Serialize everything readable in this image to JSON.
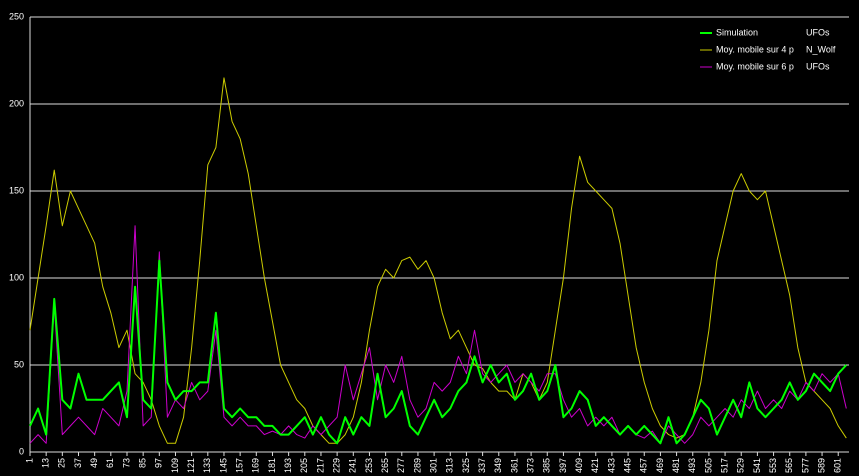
{
  "chart_data": {
    "type": "line",
    "x": [
      1,
      7,
      13,
      19,
      25,
      31,
      37,
      43,
      49,
      55,
      61,
      67,
      73,
      79,
      85,
      91,
      97,
      103,
      109,
      115,
      121,
      127,
      133,
      139,
      145,
      151,
      157,
      163,
      169,
      175,
      181,
      187,
      193,
      199,
      205,
      211,
      217,
      223,
      229,
      235,
      241,
      247,
      253,
      259,
      265,
      271,
      277,
      283,
      289,
      295,
      301,
      307,
      313,
      319,
      325,
      331,
      337,
      343,
      349,
      355,
      361,
      367,
      373,
      379,
      385,
      391,
      397,
      403,
      409,
      415,
      421,
      427,
      433,
      439,
      445,
      451,
      457,
      463,
      469,
      475,
      481,
      487,
      493,
      499,
      505,
      511,
      517,
      523,
      529,
      535,
      541,
      547,
      553,
      559,
      565,
      571,
      577,
      583,
      589,
      595,
      601,
      607
    ],
    "series": [
      {
        "name": "Simulation",
        "legend_extra": "UFOs",
        "color": "#00ff00",
        "width": 2,
        "values": [
          15,
          25,
          10,
          88,
          30,
          25,
          45,
          30,
          30,
          30,
          35,
          40,
          20,
          95,
          30,
          25,
          110,
          40,
          30,
          35,
          35,
          40,
          40,
          80,
          25,
          20,
          25,
          20,
          20,
          15,
          15,
          10,
          10,
          15,
          20,
          10,
          20,
          10,
          5,
          20,
          10,
          20,
          15,
          45,
          20,
          25,
          35,
          15,
          10,
          20,
          30,
          20,
          25,
          35,
          40,
          55,
          40,
          50,
          40,
          45,
          30,
          35,
          45,
          30,
          35,
          50,
          20,
          25,
          35,
          30,
          15,
          20,
          15,
          10,
          15,
          10,
          15,
          10,
          5,
          20,
          5,
          10,
          20,
          30,
          25,
          10,
          20,
          30,
          20,
          40,
          25,
          20,
          25,
          30,
          40,
          30,
          35,
          45,
          40,
          35,
          45,
          50
        ]
      },
      {
        "name": "Moy. mobile sur 4 p",
        "legend_extra": "N_Wolf",
        "color": "#cccc00",
        "width": 1,
        "values": [
          70,
          100,
          130,
          162,
          130,
          150,
          140,
          130,
          120,
          95,
          80,
          60,
          70,
          45,
          40,
          30,
          15,
          5,
          5,
          20,
          60,
          110,
          165,
          175,
          215,
          190,
          180,
          160,
          130,
          100,
          75,
          50,
          40,
          30,
          25,
          15,
          10,
          5,
          5,
          10,
          20,
          40,
          70,
          95,
          105,
          100,
          110,
          112,
          105,
          110,
          100,
          80,
          65,
          70,
          60,
          50,
          48,
          40,
          35,
          35,
          30,
          45,
          40,
          30,
          40,
          70,
          100,
          140,
          170,
          155,
          150,
          145,
          140,
          120,
          90,
          60,
          40,
          25,
          15,
          10,
          8,
          10,
          20,
          40,
          70,
          110,
          130,
          150,
          160,
          150,
          145,
          150,
          130,
          110,
          90,
          60,
          40,
          35,
          30,
          25,
          15,
          8
        ]
      },
      {
        "name": "Moy. mobile sur 6 p",
        "legend_extra": "UFOs",
        "color": "#cc00cc",
        "width": 1,
        "values": [
          5,
          10,
          5,
          85,
          10,
          15,
          20,
          15,
          10,
          25,
          20,
          15,
          35,
          130,
          15,
          20,
          115,
          20,
          30,
          25,
          40,
          30,
          35,
          70,
          20,
          15,
          20,
          15,
          15,
          10,
          12,
          10,
          15,
          10,
          8,
          15,
          10,
          15,
          20,
          50,
          30,
          45,
          60,
          30,
          50,
          40,
          55,
          30,
          20,
          25,
          40,
          35,
          40,
          55,
          45,
          70,
          45,
          40,
          45,
          50,
          40,
          45,
          40,
          35,
          45,
          45,
          30,
          20,
          25,
          15,
          20,
          15,
          20,
          10,
          15,
          10,
          8,
          12,
          5,
          15,
          10,
          5,
          10,
          20,
          15,
          20,
          25,
          20,
          30,
          25,
          35,
          25,
          30,
          25,
          35,
          30,
          40,
          35,
          45,
          40,
          45,
          25
        ]
      }
    ],
    "xlim": [
      1,
      609
    ],
    "xticks": [
      1,
      13,
      25,
      37,
      49,
      61,
      73,
      85,
      97,
      109,
      121,
      133,
      145,
      157,
      169,
      181,
      193,
      205,
      217,
      229,
      241,
      253,
      265,
      277,
      289,
      301,
      313,
      325,
      337,
      349,
      361,
      373,
      385,
      397,
      409,
      421,
      433,
      445,
      457,
      469,
      481,
      493,
      505,
      517,
      529,
      541,
      553,
      565,
      577,
      589,
      601
    ],
    "ylim": [
      0,
      250
    ],
    "yticks": [
      0,
      50,
      100,
      150,
      200,
      250
    ],
    "grid": true
  }
}
